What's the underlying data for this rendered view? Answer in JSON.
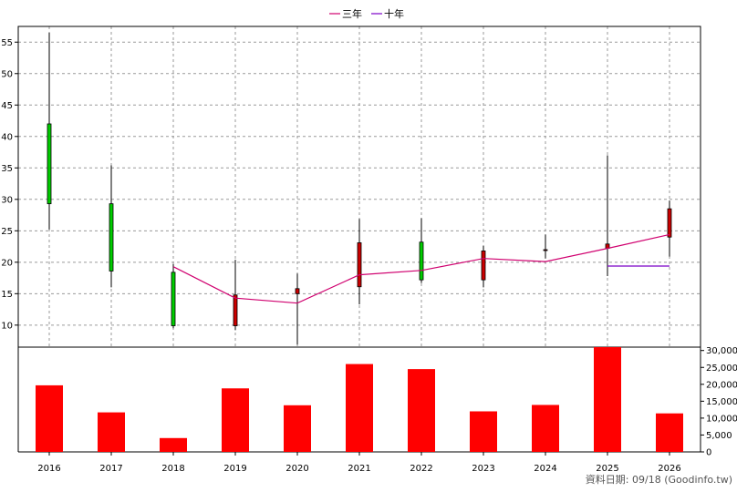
{
  "chart_data": {
    "type": "candlestick+line+bar",
    "legend": {
      "placement": "top-center",
      "items": [
        {
          "name": "三年",
          "color": "#d0006f"
        },
        {
          "name": "十年",
          "color": "#7b00c8"
        }
      ]
    },
    "categories": [
      "2016",
      "2017",
      "2018",
      "2019",
      "2020",
      "2021",
      "2022",
      "2023",
      "2024",
      "2025",
      "2026"
    ],
    "price_axis": {
      "ylim": [
        6.5,
        57.5
      ],
      "ticks": [
        "10",
        "15",
        "20",
        "25",
        "30",
        "35",
        "40",
        "45",
        "50",
        "55"
      ],
      "side": "left"
    },
    "volume_axis": {
      "ylim": [
        0,
        31000
      ],
      "ticks": [
        "0",
        "5,000",
        "10,000",
        "15,000",
        "20,000",
        "25,000",
        "30,000"
      ],
      "side": "right"
    },
    "candles": [
      {
        "x": "2016",
        "open": 42.0,
        "close": 29.3,
        "high": 56.5,
        "low": 25.2
      },
      {
        "x": "2017",
        "open": 29.3,
        "close": 18.6,
        "high": 35.4,
        "low": 16.0
      },
      {
        "x": "2018",
        "open": 18.4,
        "close": 9.9,
        "high": 19.7,
        "low": 9.5
      },
      {
        "x": "2019",
        "open": 9.9,
        "close": 14.8,
        "high": 20.4,
        "low": 9.2
      },
      {
        "x": "2020",
        "open": 15.0,
        "close": 15.8,
        "high": 18.2,
        "low": 6.9
      },
      {
        "x": "2021",
        "open": 16.1,
        "close": 23.1,
        "high": 26.9,
        "low": 13.3
      },
      {
        "x": "2022",
        "open": 23.2,
        "close": 17.2,
        "high": 27.0,
        "low": 16.7
      },
      {
        "x": "2023",
        "open": 17.2,
        "close": 21.8,
        "high": 22.6,
        "low": 16.0
      },
      {
        "x": "2024",
        "open": 21.9,
        "close": 22.0,
        "high": 24.4,
        "low": 20.6
      },
      {
        "x": "2025",
        "open": 22.2,
        "close": 22.9,
        "high": 37.0,
        "low": 17.8
      },
      {
        "x": "2026",
        "open": 24.0,
        "close": 28.5,
        "high": 29.8,
        "low": 20.9
      }
    ],
    "up_color": "#cc0000",
    "down_color": "#00cc00",
    "series": [
      {
        "name": "三年",
        "color": "#d0006f",
        "x": [
          "2018",
          "2019",
          "2020",
          "2021",
          "2022",
          "2023",
          "2024",
          "2025",
          "2026"
        ],
        "values": [
          19.3,
          14.3,
          13.5,
          18.0,
          18.7,
          20.6,
          20.1,
          22.2,
          24.4
        ]
      },
      {
        "name": "十年",
        "color": "#7b00c8",
        "x": [
          "2025",
          "2026"
        ],
        "values": [
          19.4,
          19.4
        ]
      }
    ],
    "volume": {
      "color": "#ff0000",
      "values": [
        19700,
        11700,
        4100,
        18800,
        13800,
        26000,
        24500,
        12000,
        13900,
        31000,
        11400
      ]
    },
    "grid": true,
    "credit": "資料日期: 09/18  (Goodinfo.tw)"
  }
}
